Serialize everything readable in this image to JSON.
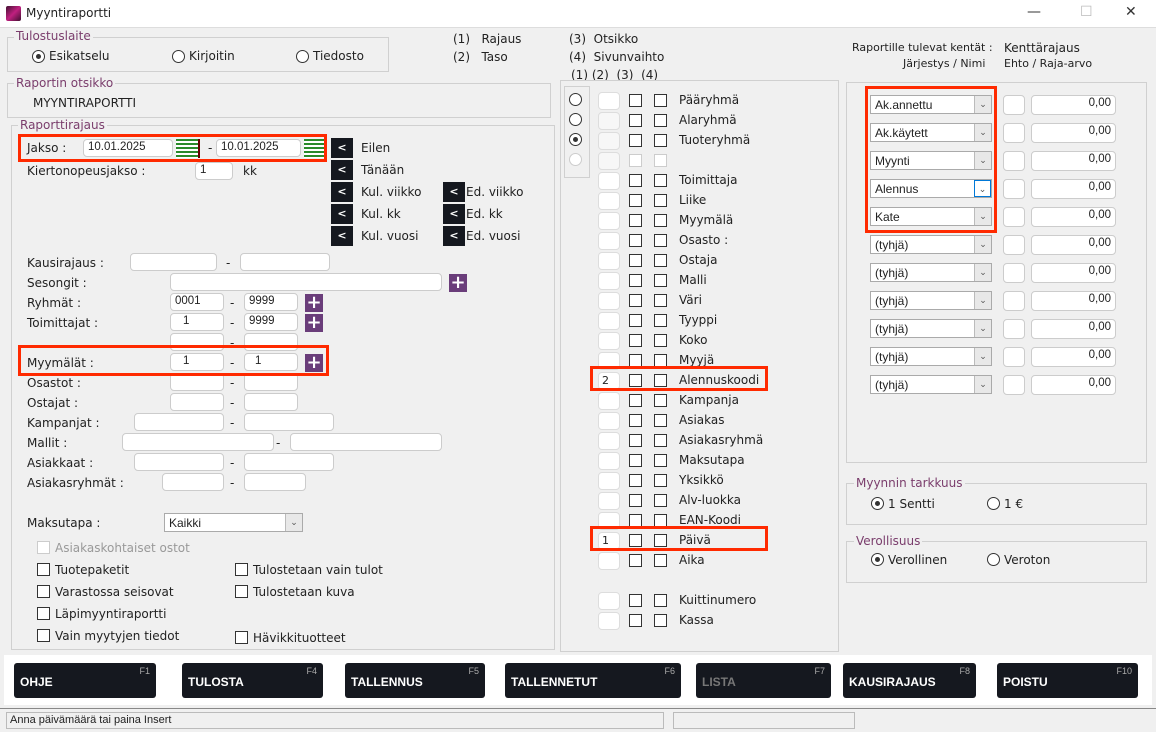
{
  "window": {
    "title": "Myyntiraportti",
    "minimize": "—",
    "maximize": "☐",
    "close": "✕"
  },
  "output_device": {
    "label": "Tulostuslaite",
    "options": [
      {
        "label": "Esikatselu",
        "selected": true
      },
      {
        "label": "Kirjoitin",
        "selected": false
      },
      {
        "label": "Tiedosto",
        "selected": false
      }
    ]
  },
  "legend": {
    "l1": "(1)",
    "t1": "Rajaus",
    "l2": "(2)",
    "t2": "Taso",
    "l3": "(3)",
    "t3": "Otsikko",
    "l4": "(4)",
    "t4": "Sivunvaihto",
    "cols": "(1) (2)  (3)  (4)"
  },
  "report_title": {
    "label": "Raportin otsikko",
    "value": "MYYNTIRAPORTTI"
  },
  "limits": {
    "label": "Raporttirajaus",
    "jakso_label": "Jakso  :",
    "date_from": "10.01.2025",
    "date_to": "10.01.2025",
    "dash": "-",
    "kierto_label": "Kiertonopeusjakso :",
    "kierto_value": "1",
    "kierto_unit": "kk",
    "quick": [
      {
        "btn": "<",
        "label": "Eilen"
      },
      {
        "btn": "<",
        "label": "Tänään"
      },
      {
        "btn": "<",
        "label": "Kul. viikko"
      },
      {
        "btn": "<",
        "label": "Kul. kk"
      },
      {
        "btn": "<",
        "label": "Kul. vuosi"
      }
    ],
    "quick2": [
      {
        "btn": "<",
        "label": "Ed. viikko"
      },
      {
        "btn": "<",
        "label": "Ed. kk"
      },
      {
        "btn": "<",
        "label": "Ed. vuosi"
      }
    ],
    "kausi_label": "Kausirajaus :",
    "sesongit_label": "Sesongit :",
    "ryhmat_label": "Ryhmät :",
    "ryhmat_from": "0001",
    "ryhmat_to": "9999",
    "toim_label": "Toimittajat :",
    "toim_from": "1",
    "toim_to": "9999",
    "myym_label": "Myymälät :",
    "myym_from": "1",
    "myym_to": "1",
    "osastot_label": "Osastot :",
    "ostajat_label": "Ostajat :",
    "kampanjat_label": "Kampanjat :",
    "mallit_label": "Mallit :",
    "asiakkaat_label": "Asiakkaat :",
    "asryhmat_label": "Asiakasryhmät :",
    "maksutapa_label": "Maksutapa :",
    "maksutapa_value": "Kaikki",
    "plus": "+"
  },
  "checkboxes": {
    "asiakaskohtaiset": "Asiakaskohtaiset ostot",
    "tuotepaketit": "Tuotepaketit",
    "varastossa": "Varastossa seisovat",
    "lapimyynti": "Läpimyyntiraportti",
    "vain_myytyjen": "Vain myytyjen tiedot",
    "vain_tulot": "Tulostetaan vain tulot",
    "kuva": "Tulostetaan kuva",
    "havikki": "Hävikkituotteet"
  },
  "levels": [
    {
      "label": "Pääryhmä",
      "num": "",
      "radio": "off"
    },
    {
      "label": "Alaryhmä",
      "num": "",
      "radio": "off"
    },
    {
      "label": "Tuoteryhmä",
      "num": "",
      "radio": "on"
    },
    {
      "label": "",
      "num": "",
      "radio": "dis"
    },
    {
      "label": "Toimittaja",
      "num": ""
    },
    {
      "label": "Liike",
      "num": ""
    },
    {
      "label": "Myymälä",
      "num": ""
    },
    {
      "label": "Osasto :",
      "num": ""
    },
    {
      "label": "Ostaja",
      "num": ""
    },
    {
      "label": "Malli",
      "num": ""
    },
    {
      "label": "Väri",
      "num": ""
    },
    {
      "label": "Tyyppi",
      "num": ""
    },
    {
      "label": "Koko",
      "num": ""
    },
    {
      "label": "Myyjä",
      "num": ""
    },
    {
      "label": "Alennuskoodi",
      "num": "2"
    },
    {
      "label": "Kampanja",
      "num": ""
    },
    {
      "label": "Asiakas",
      "num": ""
    },
    {
      "label": "Asiakasryhmä",
      "num": ""
    },
    {
      "label": "Maksutapa",
      "num": ""
    },
    {
      "label": "Yksikkö",
      "num": ""
    },
    {
      "label": "Alv-luokka",
      "num": ""
    },
    {
      "label": "EAN-Koodi",
      "num": ""
    },
    {
      "label": "Päivä",
      "num": "1"
    },
    {
      "label": "Aika",
      "num": ""
    },
    {
      "label": "",
      "num": "",
      "skip": true
    },
    {
      "label": "Kuittinumero",
      "num": ""
    },
    {
      "label": "Kassa",
      "num": ""
    }
  ],
  "fields_header": {
    "h1": "Raportille tulevat kentät :",
    "h2": "Järjestys / Nimi",
    "h3": "Kenttärajaus",
    "h4": "Ehto / Raja-arvo"
  },
  "fields": [
    {
      "name": "Ak.annettu",
      "value": "0,00"
    },
    {
      "name": "Ak.käytett",
      "value": "0,00"
    },
    {
      "name": "Myynti",
      "value": "0,00"
    },
    {
      "name": "Alennus",
      "value": "0,00"
    },
    {
      "name": "Kate",
      "value": "0,00"
    },
    {
      "name": "(tyhjä)",
      "value": "0,00"
    },
    {
      "name": "(tyhjä)",
      "value": "0,00"
    },
    {
      "name": "(tyhjä)",
      "value": "0,00"
    },
    {
      "name": "(tyhjä)",
      "value": "0,00"
    },
    {
      "name": "(tyhjä)",
      "value": "0,00"
    },
    {
      "name": "(tyhjä)",
      "value": "0,00"
    }
  ],
  "precision": {
    "label": "Myynnin tarkkuus",
    "options": [
      {
        "label": "1 Sentti",
        "selected": true
      },
      {
        "label": "1 €",
        "selected": false
      }
    ]
  },
  "tax": {
    "label": "Verollisuus",
    "options": [
      {
        "label": "Verollinen",
        "selected": true
      },
      {
        "label": "Veroton",
        "selected": false
      }
    ]
  },
  "buttons": [
    {
      "label": "OHJE",
      "key": "F1"
    },
    {
      "label": "TULOSTA",
      "key": "F4"
    },
    {
      "label": "TALLENNUS",
      "key": "F5"
    },
    {
      "label": "TALLENNETUT",
      "key": "F6"
    },
    {
      "label": "LISTA",
      "key": "F7",
      "disabled": true
    },
    {
      "label": "KAUSIRAJAUS",
      "key": "F8"
    },
    {
      "label": "POISTU",
      "key": "F10"
    }
  ],
  "status": {
    "message": "Anna päivämäärä tai paina Insert"
  },
  "colors": {
    "accent_purple": "#6a3d7a",
    "highlight": "#ff2a00",
    "button_bg": "#15181f"
  }
}
